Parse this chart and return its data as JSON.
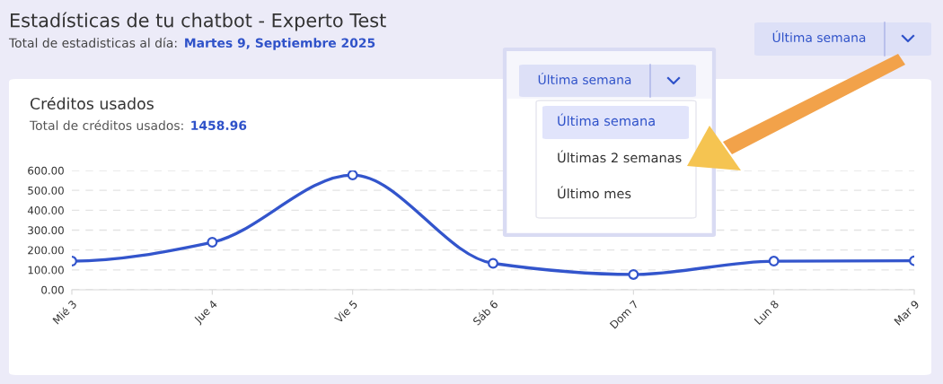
{
  "chart_data": {
    "type": "line",
    "title": "Estadísticas de tu chatbot - Experto Test",
    "subtitle": "Total de estadisticas al día: Martes 9, Septiembre 2025",
    "categories": [
      "Mié 3",
      "Jue 4",
      "Vie 5",
      "Sáb 6",
      "Dom 7",
      "Lun 8",
      "Mar 9"
    ],
    "series": [
      {
        "color": "#3355cc",
        "values": [
          144,
          239,
          577,
          133,
          77,
          144,
          146
        ]
      }
    ],
    "ylim": [
      0,
      600
    ],
    "yticks": [
      {
        "value": 0,
        "label": "0.00"
      },
      {
        "value": 100,
        "label": "100.00"
      },
      {
        "value": 200,
        "label": "200.00"
      },
      {
        "value": 300,
        "label": "300.00"
      },
      {
        "value": 400,
        "label": "400.00"
      },
      {
        "value": 500,
        "label": "500.00"
      },
      {
        "value": 600,
        "label": "600.00"
      }
    ],
    "grid": "y",
    "marker": "circle",
    "line_style": "solid",
    "legend": false,
    "annotations": [
      "Créditos usados",
      "Total de créditos usados: 1458.96",
      "Última semana",
      "Última semana",
      "Última semana",
      "Últimas 2 semanas",
      "Último mes"
    ]
  }
}
